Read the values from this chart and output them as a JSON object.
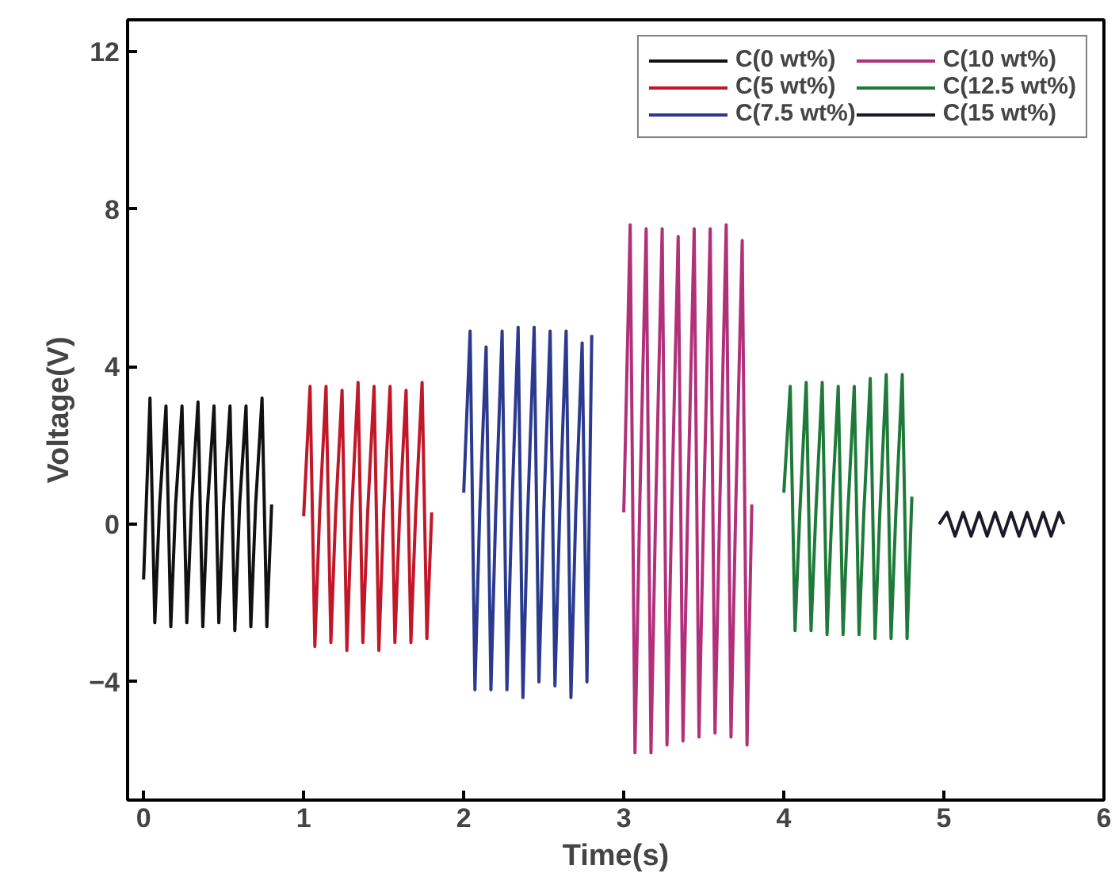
{
  "chart_data": {
    "type": "line",
    "xlabel": "Time(s)",
    "ylabel": "Voltage(V)",
    "xlim": [
      -0.1,
      6
    ],
    "ylim": [
      -7,
      12.8
    ],
    "xticks": [
      0,
      1,
      2,
      3,
      4,
      5,
      6
    ],
    "yticks": [
      -4,
      0,
      4,
      8,
      12
    ],
    "grid": false,
    "legend": "top right",
    "line_style": "solid",
    "marker": "none",
    "series": [
      {
        "name": "C(0 wt%)",
        "color": "#111111",
        "x": [
          0,
          0.04,
          0.07,
          0.1,
          0.14,
          0.17,
          0.2,
          0.24,
          0.27,
          0.3,
          0.34,
          0.37,
          0.4,
          0.44,
          0.47,
          0.5,
          0.54,
          0.57,
          0.6,
          0.64,
          0.67,
          0.7,
          0.74,
          0.77,
          0.8
        ],
        "values": [
          -1.4,
          3.2,
          -2.5,
          0.5,
          3.0,
          -2.6,
          0.5,
          3.0,
          -2.5,
          0.5,
          3.1,
          -2.6,
          0.5,
          3.0,
          -2.5,
          0.5,
          3.0,
          -2.7,
          0.5,
          3.0,
          -2.6,
          0.5,
          3.2,
          -2.6,
          0.5
        ]
      },
      {
        "name": "C(5 wt%)",
        "color": "#c0182a",
        "x": [
          1.0,
          1.04,
          1.07,
          1.1,
          1.14,
          1.17,
          1.2,
          1.24,
          1.27,
          1.3,
          1.34,
          1.37,
          1.4,
          1.44,
          1.47,
          1.5,
          1.54,
          1.57,
          1.6,
          1.64,
          1.67,
          1.7,
          1.74,
          1.77,
          1.8
        ],
        "values": [
          0.2,
          3.5,
          -3.1,
          0.3,
          3.5,
          -3.0,
          0.3,
          3.4,
          -3.2,
          0.3,
          3.6,
          -3.0,
          0.3,
          3.5,
          -3.2,
          0.3,
          3.5,
          -3.0,
          0.3,
          3.4,
          -3.0,
          0.3,
          3.6,
          -2.9,
          0.3
        ]
      },
      {
        "name": "C(7.5 wt%)",
        "color": "#2b3a8c",
        "x": [
          2.0,
          2.04,
          2.07,
          2.1,
          2.14,
          2.17,
          2.2,
          2.24,
          2.27,
          2.3,
          2.34,
          2.37,
          2.4,
          2.44,
          2.47,
          2.5,
          2.54,
          2.57,
          2.6,
          2.64,
          2.67,
          2.7,
          2.74,
          2.77,
          2.8
        ],
        "values": [
          0.8,
          4.9,
          -4.2,
          0.3,
          4.5,
          -4.2,
          0.3,
          4.9,
          -4.2,
          0.3,
          5.0,
          -4.4,
          0.3,
          5.0,
          -4.0,
          0.3,
          4.9,
          -4.1,
          0.3,
          4.9,
          -4.4,
          0.3,
          4.6,
          -4.0,
          4.8
        ]
      },
      {
        "name": "C(10 wt%)",
        "color": "#b0307a",
        "x": [
          3.0,
          3.04,
          3.07,
          3.1,
          3.14,
          3.17,
          3.2,
          3.24,
          3.27,
          3.3,
          3.34,
          3.37,
          3.4,
          3.44,
          3.47,
          3.5,
          3.54,
          3.57,
          3.6,
          3.64,
          3.67,
          3.7,
          3.74,
          3.77,
          3.8
        ],
        "values": [
          0.3,
          7.6,
          -5.8,
          0.5,
          7.5,
          -5.8,
          0.5,
          7.5,
          -5.6,
          0.5,
          7.3,
          -5.5,
          0.5,
          7.5,
          -5.4,
          0.5,
          7.5,
          -5.3,
          0.5,
          7.6,
          -5.4,
          0.5,
          7.2,
          -5.6,
          0.5
        ]
      },
      {
        "name": "C(12.5 wt%)",
        "color": "#1f7a3a",
        "x": [
          4.0,
          4.04,
          4.07,
          4.1,
          4.14,
          4.17,
          4.2,
          4.24,
          4.27,
          4.3,
          4.34,
          4.37,
          4.4,
          4.44,
          4.47,
          4.5,
          4.54,
          4.57,
          4.6,
          4.64,
          4.67,
          4.7,
          4.74,
          4.77,
          4.8
        ],
        "values": [
          0.8,
          3.5,
          -2.7,
          0.3,
          3.6,
          -2.7,
          0.3,
          3.6,
          -2.8,
          0.3,
          3.5,
          -2.8,
          0.3,
          3.5,
          -2.8,
          0.3,
          3.7,
          -2.9,
          0.3,
          3.8,
          -2.9,
          0.3,
          3.8,
          -2.9,
          0.7
        ]
      },
      {
        "name": "C(15 wt%)",
        "color": "#1a1a2a",
        "x": [
          4.97,
          5.02,
          5.07,
          5.12,
          5.17,
          5.22,
          5.27,
          5.32,
          5.37,
          5.42,
          5.47,
          5.52,
          5.57,
          5.62,
          5.67,
          5.72,
          5.75
        ],
        "values": [
          0,
          0.3,
          -0.3,
          0.3,
          -0.3,
          0.3,
          -0.3,
          0.3,
          -0.3,
          0.3,
          -0.3,
          0.3,
          -0.3,
          0.3,
          -0.3,
          0.3,
          0
        ]
      }
    ]
  }
}
